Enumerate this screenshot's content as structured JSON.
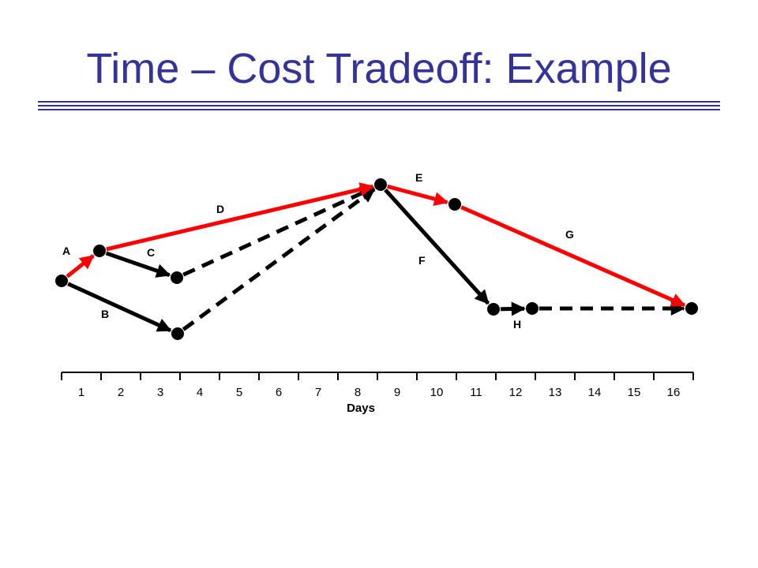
{
  "slide": {
    "title": "Time – Cost Tradeoff: Example",
    "title_color": "#333399"
  },
  "diagram": {
    "critical_color": "#ff0000",
    "normal_color": "#000000",
    "nodes": [
      {
        "id": "n1",
        "day": 0
      },
      {
        "id": "n2",
        "day": 1
      },
      {
        "id": "n3",
        "day": 3
      },
      {
        "id": "n4",
        "day": 3
      },
      {
        "id": "n5",
        "day": 8
      },
      {
        "id": "n6",
        "day": 10
      },
      {
        "id": "n7",
        "day": 11
      },
      {
        "id": "n8",
        "day": 12
      },
      {
        "id": "n9",
        "day": 16
      }
    ],
    "activities": [
      {
        "label": "A",
        "from": "n1",
        "to": "n2",
        "critical": true
      },
      {
        "label": "B",
        "from": "n1",
        "to": "n4",
        "critical": false
      },
      {
        "label": "C",
        "from": "n2",
        "to": "n3",
        "critical": false
      },
      {
        "label": "D",
        "from": "n2",
        "to": "n5",
        "critical": true
      },
      {
        "label": "E",
        "from": "n5",
        "to": "n6",
        "critical": true
      },
      {
        "label": "F",
        "from": "n5",
        "to": "n7",
        "critical": false
      },
      {
        "label": "G",
        "from": "n6",
        "to": "n9",
        "critical": true
      },
      {
        "label": "H",
        "from": "n7",
        "to": "n8",
        "critical": false
      }
    ],
    "dummies": [
      {
        "from": "n3",
        "to": "n5"
      },
      {
        "from": "n4",
        "to": "n5"
      },
      {
        "from": "n8",
        "to": "n9"
      }
    ],
    "axis": {
      "label": "Days",
      "ticks": [
        "1",
        "2",
        "3",
        "4",
        "5",
        "6",
        "7",
        "8",
        "9",
        "10",
        "11",
        "12",
        "13",
        "14",
        "15",
        "16"
      ]
    }
  }
}
